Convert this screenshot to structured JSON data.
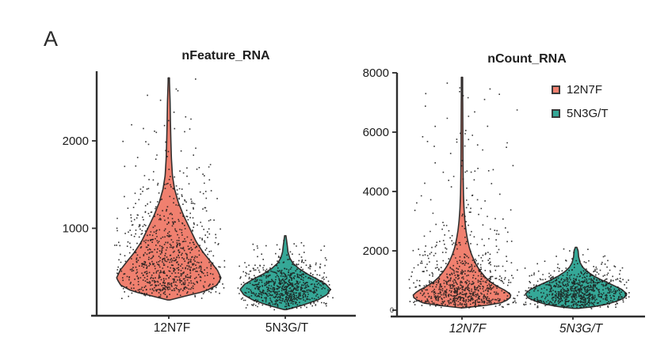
{
  "panel_label": "A",
  "colors": {
    "red": "#F0806F",
    "teal": "#35A897",
    "violin_outline": "#332F2E",
    "axis": "#2E2E2E",
    "point": "#1A1A1A",
    "text": "#1B1B1B"
  },
  "legend": {
    "items": [
      {
        "label": "12N7F",
        "color_key": "red"
      },
      {
        "label": "5N3G/T",
        "color_key": "teal"
      }
    ]
  },
  "chart_data": [
    {
      "type": "violin",
      "title": "nFeature_RNA",
      "xlabel": "",
      "ylabel": "",
      "categories": [
        "12N7F",
        "5N3G/T"
      ],
      "ylim": [
        0,
        2800
      ],
      "yticks": [
        1000,
        2000
      ],
      "grid": false,
      "legend_position": "none",
      "series": [
        {
          "name": "12N7F",
          "color_key": "red",
          "value_range": [
            180,
            2720
          ],
          "density_profile": [
            [
              180,
              0.02
            ],
            [
              230,
              0.35
            ],
            [
              280,
              0.7
            ],
            [
              350,
              0.92
            ],
            [
              430,
              1.0
            ],
            [
              520,
              0.93
            ],
            [
              620,
              0.8
            ],
            [
              730,
              0.65
            ],
            [
              850,
              0.52
            ],
            [
              1000,
              0.4
            ],
            [
              1150,
              0.28
            ],
            [
              1300,
              0.18
            ],
            [
              1450,
              0.11
            ],
            [
              1600,
              0.07
            ],
            [
              1800,
              0.05
            ],
            [
              2000,
              0.04
            ],
            [
              2200,
              0.032
            ],
            [
              2450,
              0.025
            ],
            [
              2720,
              0.01
            ]
          ]
        },
        {
          "name": "5N3G/T",
          "color_key": "teal",
          "value_range": [
            70,
            915
          ],
          "density_profile": [
            [
              70,
              0.03
            ],
            [
              120,
              0.38
            ],
            [
              180,
              0.72
            ],
            [
              240,
              0.92
            ],
            [
              300,
              1.0
            ],
            [
              360,
              0.9
            ],
            [
              420,
              0.7
            ],
            [
              480,
              0.48
            ],
            [
              540,
              0.3
            ],
            [
              600,
              0.17
            ],
            [
              660,
              0.1
            ],
            [
              730,
              0.06
            ],
            [
              800,
              0.045
            ],
            [
              915,
              0.015
            ]
          ]
        }
      ]
    },
    {
      "type": "violin",
      "title": "nCount_RNA",
      "xlabel": "",
      "ylabel": "",
      "categories": [
        "12N7F",
        "5N3G/T"
      ],
      "ylim": [
        0,
        8000
      ],
      "yticks": [
        0,
        2000,
        4000,
        6000,
        8000
      ],
      "grid": false,
      "legend_position": "top-right",
      "series": [
        {
          "name": "12N7F",
          "color_key": "red",
          "value_range": [
            80,
            7850
          ],
          "density_profile": [
            [
              80,
              0.03
            ],
            [
              150,
              0.45
            ],
            [
              250,
              0.8
            ],
            [
              380,
              0.97
            ],
            [
              500,
              1.0
            ],
            [
              650,
              0.9
            ],
            [
              800,
              0.72
            ],
            [
              950,
              0.58
            ],
            [
              1100,
              0.48
            ],
            [
              1300,
              0.38
            ],
            [
              1500,
              0.3
            ],
            [
              1700,
              0.24
            ],
            [
              1900,
              0.19
            ],
            [
              2100,
              0.15
            ],
            [
              2400,
              0.11
            ],
            [
              2700,
              0.08
            ],
            [
              3000,
              0.06
            ],
            [
              3400,
              0.042
            ],
            [
              3900,
              0.03
            ],
            [
              4500,
              0.024
            ],
            [
              5200,
              0.02
            ],
            [
              6000,
              0.018
            ],
            [
              7000,
              0.015
            ],
            [
              7850,
              0.008
            ]
          ]
        },
        {
          "name": "5N3G/T",
          "color_key": "teal",
          "value_range": [
            60,
            2120
          ],
          "density_profile": [
            [
              60,
              0.05
            ],
            [
              120,
              0.35
            ],
            [
              200,
              0.6
            ],
            [
              300,
              0.8
            ],
            [
              420,
              0.95
            ],
            [
              550,
              1.0
            ],
            [
              700,
              0.9
            ],
            [
              850,
              0.72
            ],
            [
              1000,
              0.52
            ],
            [
              1150,
              0.35
            ],
            [
              1300,
              0.22
            ],
            [
              1450,
              0.13
            ],
            [
              1600,
              0.08
            ],
            [
              1800,
              0.05
            ],
            [
              2000,
              0.04
            ],
            [
              2120,
              0.015
            ]
          ]
        }
      ]
    }
  ]
}
